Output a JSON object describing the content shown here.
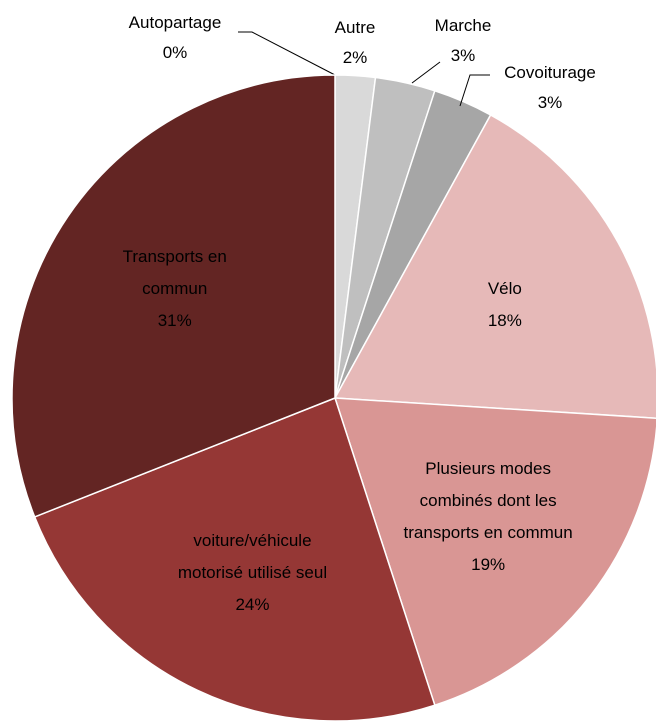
{
  "chart_data": {
    "type": "pie",
    "categories": [
      "Autopartage",
      "Autre",
      "Marche",
      "Covoiturage",
      "Vélo",
      "Plusieurs modes combinés dont les transports en commun",
      "voiture/véhicule motorisé utilisé seul",
      "Transports en commun"
    ],
    "values": [
      0,
      2,
      3,
      3,
      18,
      19,
      24,
      31
    ],
    "value_labels": [
      "0%",
      "2%",
      "3%",
      "3%",
      "18%",
      "19%",
      "24%",
      "31%"
    ],
    "colors": [
      "#f2f2f2",
      "#d9d9d9",
      "#bfbfbf",
      "#a6a6a6",
      "#e6b9b8",
      "#d99694",
      "#953735",
      "#632523"
    ]
  }
}
